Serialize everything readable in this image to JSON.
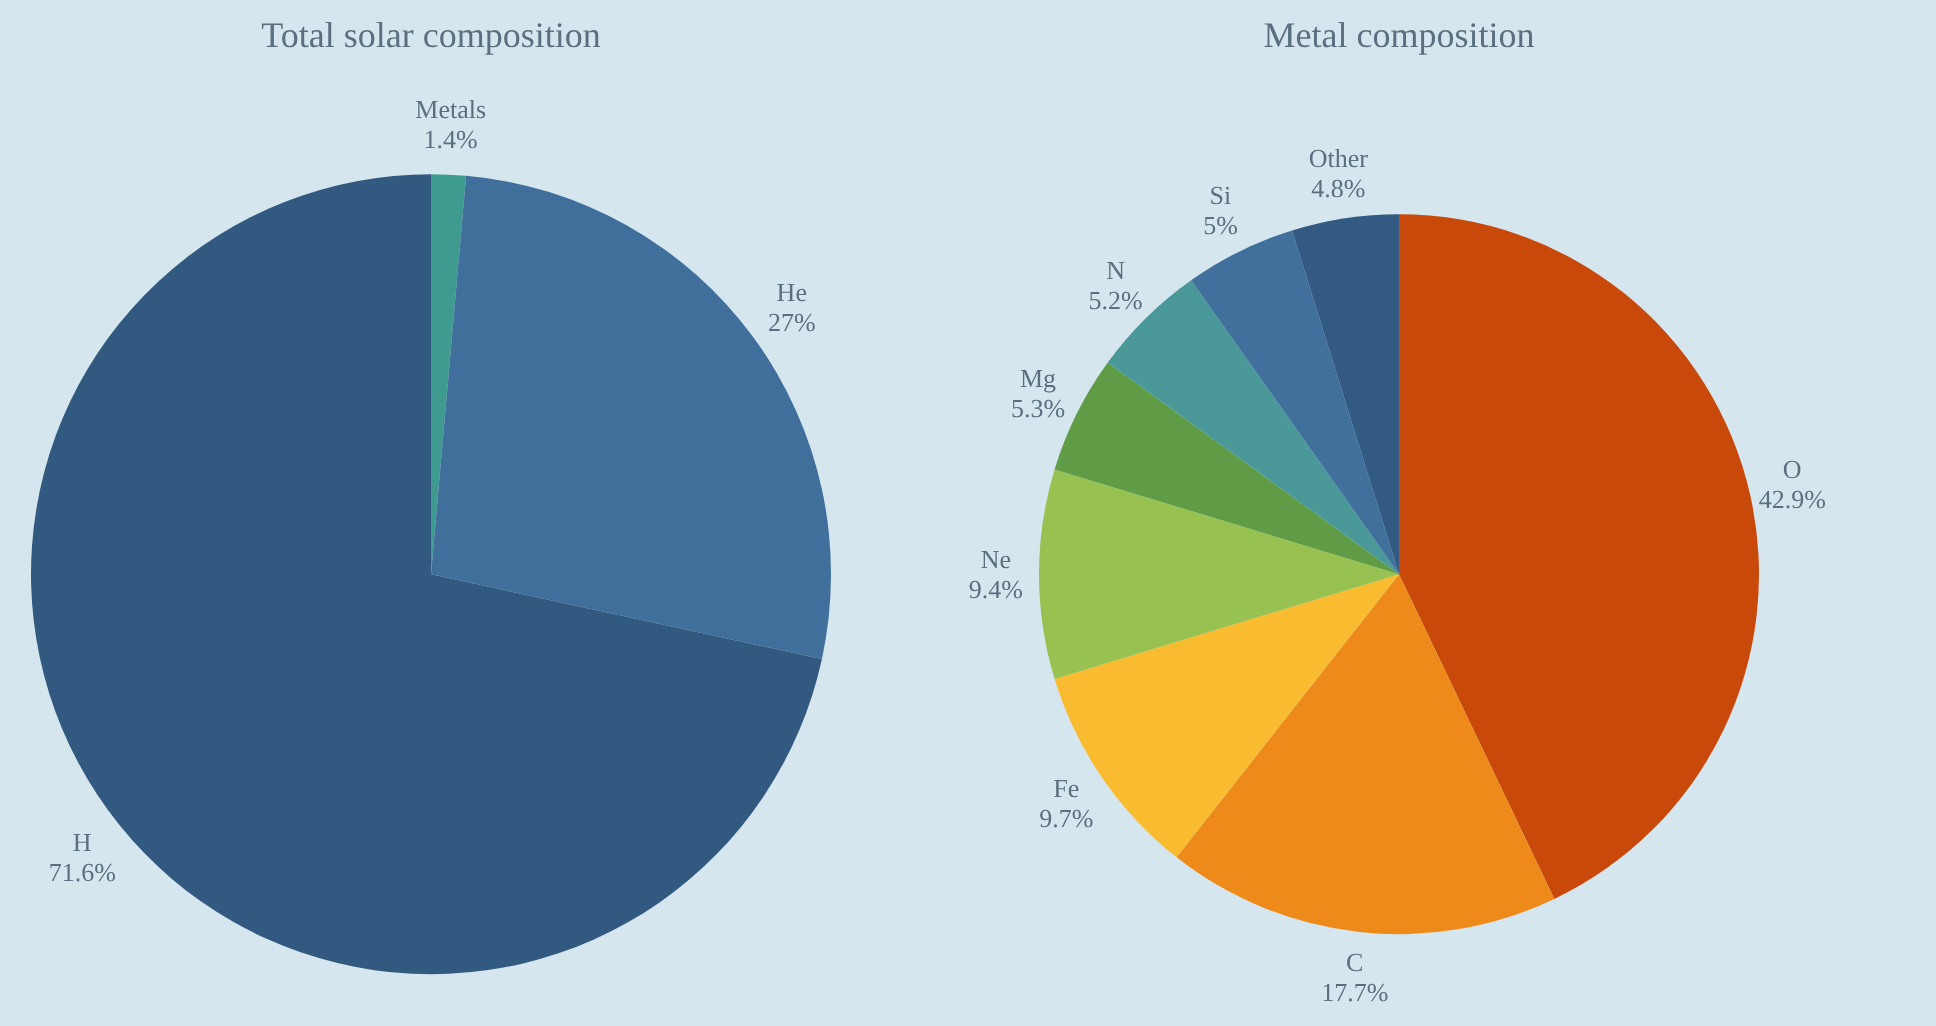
{
  "chart_data": [
    {
      "type": "pie",
      "title": "Total solar composition",
      "categories": [
        "Metals",
        "He",
        "H"
      ],
      "values": [
        1.4,
        27,
        71.6
      ],
      "value_labels": [
        "1.4%",
        "27%",
        "71.6%"
      ],
      "colors": [
        "#3f9a8f",
        "#3f6f9a",
        "#325a80"
      ]
    },
    {
      "type": "pie",
      "title": "Metal composition",
      "categories": [
        "O",
        "C",
        "Fe",
        "Ne",
        "Mg",
        "N",
        "Si",
        "Other"
      ],
      "values": [
        42.9,
        17.7,
        9.7,
        9.4,
        5.3,
        5.2,
        5,
        4.8
      ],
      "value_labels": [
        "42.9%",
        "17.7%",
        "9.7%",
        "9.4%",
        "5.3%",
        "5.2%",
        "5%",
        "4.8%"
      ],
      "colors": [
        "#c8490a",
        "#ee8a1a",
        "#f9bb30",
        "#97c150",
        "#5f9c45",
        "#4a9898",
        "#41709c",
        "#325a82"
      ]
    }
  ]
}
